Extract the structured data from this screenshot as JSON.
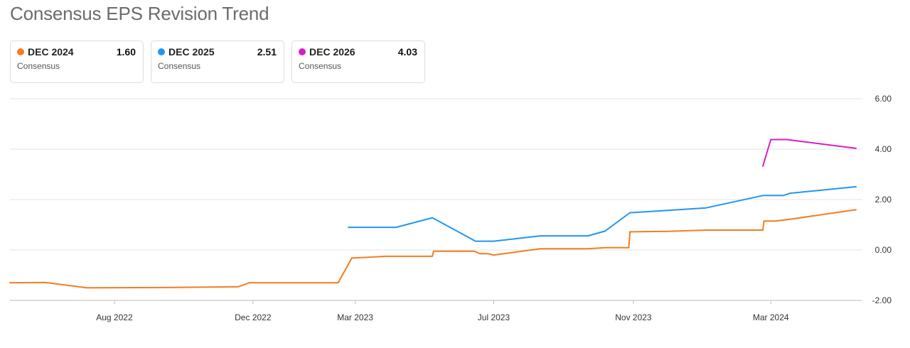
{
  "title": "Consensus EPS Revision Trend",
  "cards": [
    {
      "label": "DEC 2024",
      "value": "1.60",
      "sub": "Consensus",
      "color": "#f57c20",
      "icon": "dot-icon"
    },
    {
      "label": "DEC 2025",
      "value": "2.51",
      "sub": "Consensus",
      "color": "#2196f3",
      "icon": "dot-icon"
    },
    {
      "label": "DEC 2026",
      "value": "4.03",
      "sub": "Consensus",
      "color": "#d41fc4",
      "icon": "dot-icon"
    }
  ],
  "chart_data": {
    "type": "line",
    "title": "Consensus EPS Revision Trend",
    "xlabel": "",
    "ylabel": "",
    "x_range": [
      "2022-05-01",
      "2024-05-20"
    ],
    "ylim": [
      -2,
      6
    ],
    "y_ticks": [
      "6.00",
      "4.00",
      "2.00",
      "0.00",
      "-2.00"
    ],
    "y_tick_values": [
      6,
      4,
      2,
      0,
      -2
    ],
    "x_ticks": [
      {
        "label": "Aug 2022",
        "date": "2022-08-01"
      },
      {
        "label": "Dec 2022",
        "date": "2022-12-01"
      },
      {
        "label": "Mar 2023",
        "date": "2023-03-01"
      },
      {
        "label": "Jul 2023",
        "date": "2023-07-01"
      },
      {
        "label": "Nov 2023",
        "date": "2023-11-01"
      },
      {
        "label": "Mar 2024",
        "date": "2024-03-01"
      }
    ],
    "grid": true,
    "series": [
      {
        "name": "DEC 2024",
        "color": "#f57c20",
        "points": [
          [
            "2022-05-01",
            -1.3
          ],
          [
            "2022-06-01",
            -1.29
          ],
          [
            "2022-07-08",
            -1.5
          ],
          [
            "2022-09-08",
            -1.49
          ],
          [
            "2022-11-18",
            -1.46
          ],
          [
            "2022-11-28",
            -1.3
          ],
          [
            "2023-02-14",
            -1.3
          ],
          [
            "2023-02-26",
            -0.32
          ],
          [
            "2023-03-28",
            -0.25
          ],
          [
            "2023-05-08",
            -0.25
          ],
          [
            "2023-05-09",
            -0.05
          ],
          [
            "2023-06-14",
            -0.05
          ],
          [
            "2023-06-19",
            -0.15
          ],
          [
            "2023-06-26",
            -0.15
          ],
          [
            "2023-07-01",
            -0.2
          ],
          [
            "2023-08-11",
            0.05
          ],
          [
            "2023-09-22",
            0.05
          ],
          [
            "2023-10-07",
            0.09
          ],
          [
            "2023-10-28",
            0.09
          ],
          [
            "2023-10-29",
            0.72
          ],
          [
            "2023-12-01",
            0.74
          ],
          [
            "2024-01-04",
            0.79
          ],
          [
            "2024-02-23",
            0.79
          ],
          [
            "2024-02-24",
            1.15
          ],
          [
            "2024-03-05",
            1.15
          ],
          [
            "2024-03-18",
            1.22
          ],
          [
            "2024-05-15",
            1.6
          ]
        ]
      },
      {
        "name": "DEC 2025",
        "color": "#2196f3",
        "points": [
          [
            "2023-02-23",
            0.9
          ],
          [
            "2023-04-06",
            0.9
          ],
          [
            "2023-05-08",
            1.28
          ],
          [
            "2023-06-15",
            0.35
          ],
          [
            "2023-07-01",
            0.35
          ],
          [
            "2023-08-11",
            0.56
          ],
          [
            "2023-09-22",
            0.56
          ],
          [
            "2023-10-07",
            0.75
          ],
          [
            "2023-10-29",
            1.48
          ],
          [
            "2023-12-01",
            1.57
          ],
          [
            "2024-01-04",
            1.67
          ],
          [
            "2024-02-23",
            2.16
          ],
          [
            "2024-03-12",
            2.16
          ],
          [
            "2024-03-18",
            2.25
          ],
          [
            "2024-05-15",
            2.51
          ]
        ]
      },
      {
        "name": "DEC 2026",
        "color": "#d41fc4",
        "points": [
          [
            "2024-02-23",
            3.32
          ],
          [
            "2024-03-01",
            4.38
          ],
          [
            "2024-03-15",
            4.38
          ],
          [
            "2024-05-15",
            4.03
          ]
        ]
      }
    ]
  }
}
